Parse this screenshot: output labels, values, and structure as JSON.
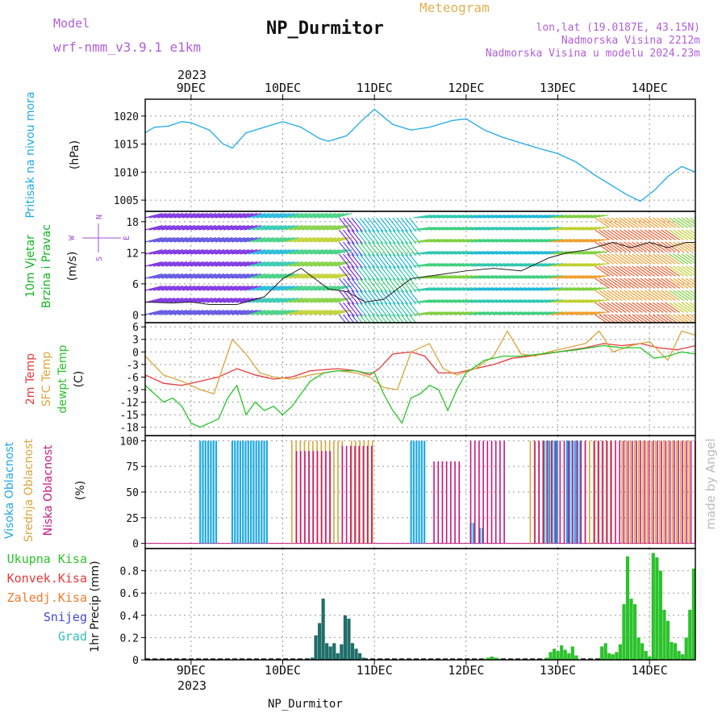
{
  "header": {
    "model_label": "Model",
    "model_name": "wrf-nmm_v3.9.1 e1km",
    "station": "NP_Durmitor",
    "meteogram": "Meteogram",
    "lonlat": "lon,lat (19.0187E, 43.15N)",
    "elevation": "Nadmorska Visina 2212m",
    "model_elevation": "Nadmorska Visina u modelu 2024.23m",
    "footer_station": "NP_Durmitor",
    "credit": "made by Angel",
    "year": "2023"
  },
  "colors": {
    "pressure": "#1da9e6",
    "wind_label": "#10b520",
    "temp2m": "#e8383a",
    "sfc": "#d9a53a",
    "dew": "#28c428",
    "cloud_high": "#1da9e6",
    "cloud_mid": "#d9a53a",
    "cloud_low": "#c8177e",
    "precip_total": "#2cc22c",
    "precip_conv": "#e8383a",
    "precip_frozen": "#f07a2c",
    "snow": "#4048d8",
    "graupel": "#30c0c0",
    "precip_bar": "#1f6e6a",
    "purple": "#a050d0",
    "orange": "#e0b050"
  },
  "chart_data": [
    {
      "type": "line",
      "panel": "pressure",
      "title_lines": [
        "Pritisak na nivou mora",
        "(hPa)"
      ],
      "x_range_days": [
        8.5,
        14.5
      ],
      "day_labels": [
        "9DEC",
        "10DEC",
        "11DEC",
        "12DEC",
        "13DEC",
        "14DEC"
      ],
      "day_positions": [
        9,
        10,
        11,
        12,
        13,
        14
      ],
      "ylim": [
        1003,
        1023
      ],
      "yticks": [
        1005,
        1010,
        1015,
        1020
      ],
      "series": [
        {
          "name": "Pritisak na nivou mora",
          "x": [
            8.5,
            8.6,
            8.75,
            8.9,
            9.0,
            9.2,
            9.35,
            9.45,
            9.6,
            9.8,
            10.0,
            10.2,
            10.4,
            10.5,
            10.7,
            10.85,
            11.0,
            11.2,
            11.4,
            11.6,
            11.85,
            12.0,
            12.2,
            12.4,
            12.6,
            12.8,
            13.0,
            13.2,
            13.4,
            13.6,
            13.75,
            13.9,
            14.05,
            14.2,
            14.35,
            14.5
          ],
          "values": [
            1017,
            1018,
            1018.2,
            1019,
            1018.8,
            1017.5,
            1015,
            1014.3,
            1017,
            1018,
            1019,
            1018,
            1016,
            1015.5,
            1016.5,
            1019,
            1021.2,
            1018.5,
            1017.5,
            1018,
            1019.2,
            1019.5,
            1017.5,
            1016.2,
            1015.2,
            1014.2,
            1013.3,
            1011.8,
            1009.5,
            1007.5,
            1006,
            1004.8,
            1006.7,
            1009.2,
            1011,
            1010
          ]
        }
      ]
    },
    {
      "type": "line",
      "panel": "wind",
      "title_lines": [
        "10m Vjetar",
        "Brzina i Pravac",
        "(m/s)"
      ],
      "compass": {
        "n": "N",
        "s": "S",
        "e": "E",
        "w": "W"
      },
      "ylim": [
        -1.5,
        20
      ],
      "yticks": [
        0,
        6,
        12,
        18
      ],
      "series": [
        {
          "name": "brzina",
          "x": [
            8.5,
            8.8,
            9.0,
            9.2,
            9.5,
            9.8,
            10.0,
            10.2,
            10.5,
            10.7,
            10.9,
            11.1,
            11.4,
            11.6,
            11.8,
            12.0,
            12.3,
            12.6,
            12.9,
            13.1,
            13.3,
            13.6,
            13.8,
            14.0,
            14.2,
            14.4,
            14.5
          ],
          "values": [
            2.5,
            2.3,
            2.5,
            2,
            2,
            3.5,
            7,
            9,
            5,
            4.5,
            2.5,
            3,
            7,
            7.5,
            8,
            8.5,
            9,
            8.5,
            11,
            12,
            12.5,
            14,
            13,
            14,
            13,
            14,
            14
          ]
        }
      ]
    },
    {
      "type": "line",
      "panel": "temperature",
      "title_lines": [
        "2m Temp",
        "SFC Temp",
        "dewpt Temp",
        "(C)"
      ],
      "ylim": [
        -20,
        7
      ],
      "yticks": [
        -18,
        -15,
        -12,
        -9,
        -6,
        -3,
        0,
        3,
        6
      ],
      "series": [
        {
          "name": "2m Temp",
          "x": [
            8.5,
            8.7,
            8.9,
            9.1,
            9.3,
            9.5,
            9.7,
            9.9,
            10.1,
            10.3,
            10.6,
            10.8,
            10.95,
            11.05,
            11.2,
            11.4,
            11.55,
            11.7,
            11.9,
            12.1,
            12.3,
            12.5,
            12.7,
            13.0,
            13.3,
            13.5,
            13.7,
            13.9,
            14.1,
            14.3,
            14.5
          ],
          "values": [
            -5.5,
            -7.5,
            -8,
            -7,
            -6,
            -4,
            -5.5,
            -6.5,
            -6,
            -4.5,
            -4,
            -4.5,
            -5.5,
            -4,
            -0.5,
            0,
            -1,
            -5,
            -5,
            -4,
            -3,
            -1.5,
            -1,
            0,
            1,
            2,
            1.5,
            2,
            1,
            0.5,
            1.5
          ]
        },
        {
          "name": "SFC Temp",
          "x": [
            8.5,
            8.7,
            8.9,
            9.1,
            9.25,
            9.45,
            9.6,
            9.75,
            9.9,
            10.1,
            10.3,
            10.6,
            10.8,
            10.95,
            11.1,
            11.25,
            11.4,
            11.6,
            11.75,
            11.9,
            12.1,
            12.3,
            12.45,
            12.6,
            12.75,
            12.9,
            13.1,
            13.3,
            13.45,
            13.6,
            13.8,
            14.0,
            14.2,
            14.35,
            14.5
          ],
          "values": [
            -1,
            -5.5,
            -7,
            -9,
            -10,
            3,
            -0.5,
            -5,
            -6,
            -6.5,
            -5.5,
            -4.5,
            -5,
            -6,
            -8.5,
            -9,
            0,
            2,
            -4,
            -5.5,
            -4,
            -1,
            5,
            -0.5,
            -1,
            0,
            1,
            2,
            5,
            0,
            1.5,
            2.5,
            -2,
            5,
            4
          ]
        },
        {
          "name": "dewpt Temp",
          "x": [
            8.5,
            8.6,
            8.7,
            8.8,
            8.9,
            9.0,
            9.1,
            9.2,
            9.3,
            9.4,
            9.5,
            9.6,
            9.7,
            9.8,
            9.9,
            10.0,
            10.1,
            10.2,
            10.3,
            10.45,
            10.6,
            10.8,
            10.9,
            11.0,
            11.1,
            11.2,
            11.3,
            11.4,
            11.5,
            11.6,
            11.7,
            11.8,
            11.9,
            12.0,
            12.2,
            12.4,
            12.6,
            12.8,
            13.0,
            13.2,
            13.5,
            13.7,
            13.9,
            14.05,
            14.2,
            14.35,
            14.5
          ],
          "values": [
            -8,
            -10,
            -12,
            -11,
            -13,
            -17,
            -18,
            -17,
            -16,
            -11,
            -8,
            -15,
            -12,
            -14,
            -13,
            -15,
            -13,
            -10,
            -7,
            -5,
            -4.5,
            -4.5,
            -5,
            -5,
            -10,
            -14,
            -17,
            -11,
            -10,
            -8,
            -9,
            -14,
            -9,
            -5,
            -2,
            -1,
            -1,
            -0.5,
            0,
            0.5,
            1.5,
            1,
            1,
            -1.5,
            -1,
            0,
            -0.5
          ]
        }
      ]
    },
    {
      "type": "bar",
      "panel": "clouds",
      "title_lines": [
        "Visoka Oblacnost",
        "Srednja Oblacnost",
        "Niska Oblacnost",
        "(%)"
      ],
      "ylim": [
        -5,
        105
      ],
      "yticks": [
        0,
        25,
        50,
        75,
        100
      ],
      "series": [
        {
          "name": "Visoka Oblacnost",
          "ranges": [
            [
              9.1,
              9.3,
              100
            ],
            [
              9.45,
              9.85,
              100
            ],
            [
              11.4,
              11.55,
              100
            ],
            [
              12.05,
              12.1,
              20
            ],
            [
              12.15,
              12.2,
              15
            ],
            [
              12.85,
              13.0,
              100
            ],
            [
              13.1,
              13.25,
              100
            ]
          ]
        },
        {
          "name": "Srednja Oblacnost",
          "ranges": [
            [
              10.1,
              10.65,
              100
            ],
            [
              10.75,
              11.0,
              100
            ],
            [
              12.7,
              12.95,
              100
            ],
            [
              13.3,
              13.6,
              100
            ],
            [
              13.7,
              14.45,
              100
            ]
          ]
        },
        {
          "name": "Niska Oblacnost",
          "ranges": [
            [
              10.15,
              10.55,
              90
            ],
            [
              10.65,
              11.0,
              95
            ],
            [
              11.65,
              11.95,
              80
            ],
            [
              12.05,
              12.45,
              100
            ],
            [
              12.75,
              13.3,
              100
            ],
            [
              13.4,
              14.5,
              100
            ]
          ]
        }
      ]
    },
    {
      "type": "bar",
      "panel": "precip",
      "title_lines": [
        "1hr Precip (mm)"
      ],
      "legend": [
        "Ukupna Kisa",
        "Konvek.Kisa",
        "Zaledj.Kisa",
        "Snijeg",
        "Grad"
      ],
      "ylim": [
        0,
        1.0
      ],
      "yticks": [
        0,
        0.2,
        0.4,
        0.6,
        0.8
      ],
      "series": [
        {
          "name": "Snijeg",
          "x": [
            10.32,
            10.36,
            10.4,
            10.44,
            10.48,
            10.52,
            10.56,
            10.6,
            10.64,
            10.68,
            10.72,
            10.76,
            10.8,
            10.84,
            10.88
          ],
          "values": [
            0.02,
            0.22,
            0.33,
            0.55,
            0.15,
            0.12,
            0.15,
            0.06,
            0.14,
            0.4,
            0.37,
            0.15,
            0.1,
            0.06,
            0.02
          ]
        },
        {
          "name": "Ukupna Kisa",
          "x": [
            12.2,
            12.24,
            12.28,
            12.32,
            12.36,
            12.88,
            12.92,
            12.96,
            13.0,
            13.04,
            13.08,
            13.12,
            13.16,
            13.2,
            13.48,
            13.52,
            13.56,
            13.6,
            13.64,
            13.68,
            13.72,
            13.76,
            13.8,
            13.84,
            13.88,
            13.92,
            13.96,
            14.0,
            14.04,
            14.08,
            14.12,
            14.16,
            14.2,
            14.24,
            14.28,
            14.32,
            14.36,
            14.4,
            14.44,
            14.48
          ],
          "values": [
            0.01,
            0.02,
            0.03,
            0.02,
            0.01,
            0.02,
            0.07,
            0.1,
            0.08,
            0.13,
            0.09,
            0.06,
            0.12,
            0.04,
            0.12,
            0.15,
            0.06,
            0.05,
            0.07,
            0.14,
            0.5,
            0.93,
            0.55,
            0.5,
            0.2,
            0.15,
            0.08,
            0.03,
            0.96,
            0.92,
            0.8,
            0.45,
            0.35,
            0.16,
            0.15,
            0.08,
            0.05,
            0.2,
            0.45,
            0.82
          ]
        }
      ]
    }
  ]
}
